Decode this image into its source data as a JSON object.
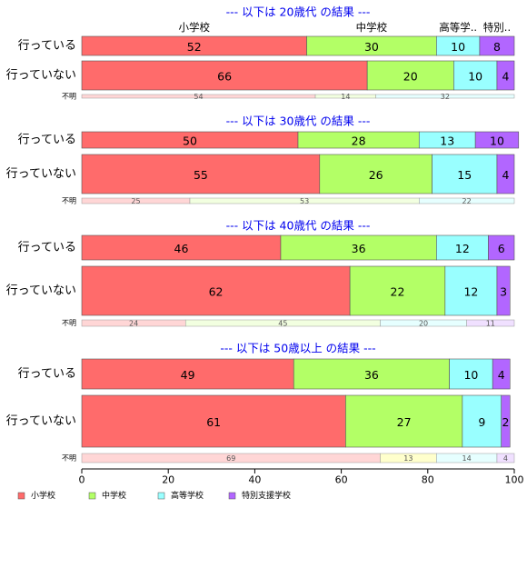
{
  "chart_data": {
    "type": "bar",
    "orientation": "horizontal",
    "stacked": true,
    "percent": true,
    "xlim": [
      0,
      100
    ],
    "x_ticks": [
      0,
      20,
      40,
      60,
      80,
      100
    ],
    "categories_legend": [
      "小学校",
      "中学校",
      "高等学校",
      "特別支援学校"
    ],
    "colors": [
      "#ff6b6b",
      "#b3ff66",
      "#99ffff",
      "#b266ff"
    ],
    "unknown_colors": [
      "#ffd6d6",
      "#f2ffe0",
      "#e6ffff",
      "#f0e0ff"
    ],
    "unknown_colors_last": [
      "#ffd6d6",
      "#ffffcc",
      "#e6ffff",
      "#f0e0ff"
    ],
    "col_header_labels": [
      "小学校",
      "中学校",
      "高等学..",
      "特別.."
    ],
    "unknown_label": "不明",
    "panels": [
      {
        "title": "--- 以下は 20歳代 の結果 ---",
        "rows": [
          {
            "label": "行っている",
            "values": [
              52,
              30,
              10,
              8
            ]
          },
          {
            "label": "行っていない",
            "values": [
              66,
              20,
              10,
              4
            ]
          }
        ],
        "unknown": [
          54,
          14,
          32
        ]
      },
      {
        "title": "--- 以下は 30歳代 の結果 ---",
        "rows": [
          {
            "label": "行っている",
            "values": [
              50,
              28,
              13,
              10
            ]
          },
          {
            "label": "行っていない",
            "values": [
              55,
              26,
              15,
              4
            ]
          }
        ],
        "unknown": [
          25,
          53,
          22
        ]
      },
      {
        "title": "--- 以下は 40歳代 の結果 ---",
        "rows": [
          {
            "label": "行っている",
            "values": [
              46,
              36,
              12,
              6
            ]
          },
          {
            "label": "行っていない",
            "values": [
              62,
              22,
              12,
              3
            ]
          }
        ],
        "unknown": [
          24,
          45,
          20,
          11
        ]
      },
      {
        "title": "--- 以下は 50歳以上 の結果 ---",
        "rows": [
          {
            "label": "行っている",
            "values": [
              49,
              36,
              10,
              4
            ]
          },
          {
            "label": "行っていない",
            "values": [
              61,
              27,
              9,
              2
            ]
          }
        ],
        "unknown": [
          69,
          13,
          14,
          4
        ]
      }
    ]
  }
}
